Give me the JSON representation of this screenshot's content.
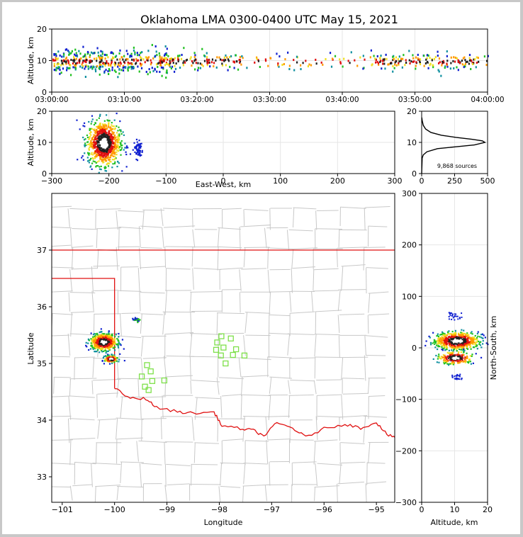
{
  "figure": {
    "title": "Oklahoma LMA 0300-0400 UTC May 15, 2021"
  },
  "chart_data": [
    {
      "panel": "altitude-time",
      "type": "scatter",
      "title": "",
      "xlabel": "",
      "ylabel": "Altitude, km",
      "xticks": [
        "03:00:00",
        "03:10:00",
        "03:20:00",
        "03:30:00",
        "03:40:00",
        "03:50:00",
        "04:00:00"
      ],
      "xlim_minutes": [
        0,
        60
      ],
      "ylim": [
        0,
        20
      ],
      "yticks": [
        0,
        10,
        20
      ],
      "grid": true
    },
    {
      "panel": "altitude-eastwest",
      "type": "scatter",
      "xlabel": "East-West, km",
      "ylabel": "Altitude, km",
      "xlim": [
        -300,
        300
      ],
      "xticks": [
        -300,
        -200,
        -100,
        0,
        100,
        200,
        300
      ],
      "ylim": [
        0,
        20
      ],
      "yticks": [
        0,
        10,
        20
      ],
      "grid": true,
      "clusters": [
        {
          "x": -210,
          "z": 10,
          "sx": 14,
          "sz": 3.5
        },
        {
          "x": -150,
          "z": 8,
          "sx": 4,
          "sz": 1.5
        }
      ]
    },
    {
      "panel": "altitude-histogram",
      "type": "line",
      "xlim": [
        0,
        500
      ],
      "xticks": [
        0,
        250,
        500
      ],
      "ylim": [
        0,
        20
      ],
      "yticks": [
        0,
        10,
        20
      ],
      "annotation": "9,868 sources",
      "profile": [
        [
          0,
          0
        ],
        [
          4,
          5
        ],
        [
          12,
          6
        ],
        [
          40,
          7
        ],
        [
          120,
          8
        ],
        [
          260,
          8.6
        ],
        [
          400,
          9.2
        ],
        [
          480,
          10
        ],
        [
          460,
          10.5
        ],
        [
          380,
          11
        ],
        [
          260,
          11.6
        ],
        [
          150,
          12.3
        ],
        [
          70,
          13.2
        ],
        [
          30,
          14.3
        ],
        [
          12,
          15.5
        ],
        [
          4,
          17
        ],
        [
          1,
          18
        ]
      ]
    },
    {
      "panel": "plan-view",
      "type": "scatter",
      "xlabel": "Longitude",
      "ylabel": "Latitude",
      "xlim": [
        -101.2,
        -94.65
      ],
      "ylim": [
        32.55,
        38
      ],
      "xticks": [
        -101,
        -100,
        -99,
        -98,
        -97,
        -96,
        -95
      ],
      "yticks": [
        33,
        34,
        35,
        36,
        37
      ],
      "stations": [
        {
          "lon": -99.38,
          "lat": 34.97
        },
        {
          "lon": -99.31,
          "lat": 34.86
        },
        {
          "lon": -99.48,
          "lat": 34.77
        },
        {
          "lon": -99.28,
          "lat": 34.69
        },
        {
          "lon": -99.42,
          "lat": 34.59
        },
        {
          "lon": -99.35,
          "lat": 34.53
        },
        {
          "lon": -99.05,
          "lat": 34.7
        },
        {
          "lon": -97.96,
          "lat": 35.48
        },
        {
          "lon": -97.78,
          "lat": 35.44
        },
        {
          "lon": -98.04,
          "lat": 35.37
        },
        {
          "lon": -97.92,
          "lat": 35.28
        },
        {
          "lon": -98.06,
          "lat": 35.24
        },
        {
          "lon": -97.68,
          "lat": 35.25
        },
        {
          "lon": -97.97,
          "lat": 35.14
        },
        {
          "lon": -97.74,
          "lat": 35.15
        },
        {
          "lon": -97.52,
          "lat": 35.14
        },
        {
          "lon": -97.88,
          "lat": 35.0
        }
      ],
      "clusters": [
        {
          "lon": -100.22,
          "lat": 35.39,
          "sx": 0.12,
          "sy": 0.07
        },
        {
          "lon": -100.08,
          "lat": 35.09,
          "sx": 0.06,
          "sy": 0.03
        },
        {
          "lon": -99.6,
          "lat": 35.78,
          "sx": 0.03,
          "sy": 0.02
        }
      ]
    },
    {
      "panel": "altitude-northsouth",
      "type": "scatter",
      "xlabel": "Altitude, km",
      "ylabel": "North-South, km",
      "xlim": [
        0,
        20
      ],
      "xticks": [
        0,
        10,
        20
      ],
      "ylim": [
        -300,
        300
      ],
      "yticks": [
        -300,
        -200,
        -100,
        0,
        100,
        200,
        300
      ],
      "grid": true,
      "clusters": [
        {
          "z": 10.5,
          "y": 15,
          "sz": 3.2,
          "sy": 8
        },
        {
          "z": 10,
          "y": -18,
          "sz": 2.5,
          "sy": 6
        }
      ]
    }
  ]
}
